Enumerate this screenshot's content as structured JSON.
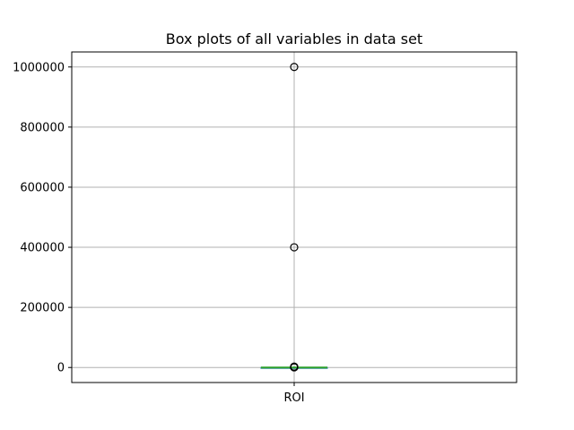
{
  "chart_data": {
    "type": "box",
    "title": "Box plots of all variables in data set",
    "xlabel": "",
    "ylabel": "",
    "categories": [
      "ROI"
    ],
    "ylim": [
      -50000,
      1050000
    ],
    "yticks": [
      0,
      200000,
      400000,
      600000,
      800000,
      1000000
    ],
    "ytick_labels": [
      "0",
      "200000",
      "400000",
      "600000",
      "800000",
      "1000000"
    ],
    "grid": true,
    "boxes": [
      {
        "name": "ROI",
        "whisker_low": -100,
        "q1": 0,
        "median": 50,
        "q3": 100,
        "whisker_high": 200,
        "outliers": [
          1000000,
          400000,
          3000,
          2000,
          1500,
          1000,
          800,
          500
        ]
      }
    ],
    "colors": {
      "box": "#1f77b4",
      "median": "#2ca02c",
      "grid": "#b0b0b0",
      "outlier": "#000000"
    }
  }
}
